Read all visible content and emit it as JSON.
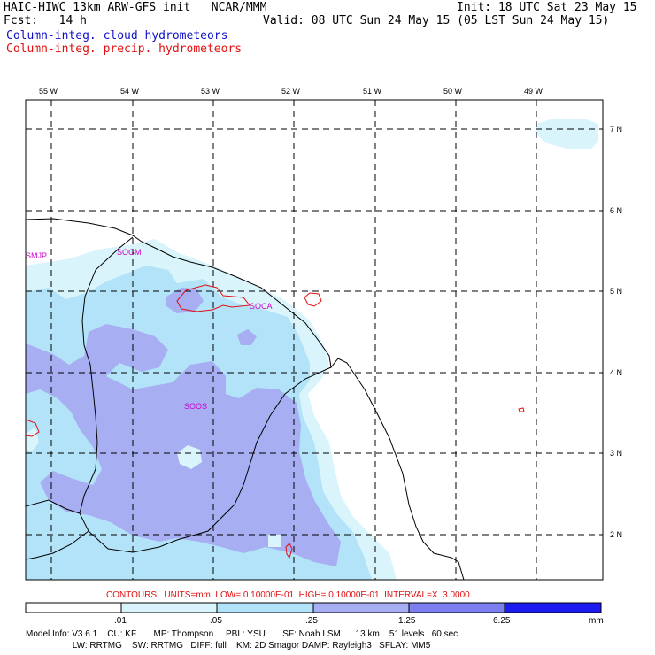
{
  "header": {
    "model_line": "HAIC-HIWC 13km ARW-GFS init   NCAR/MMM",
    "fcst_line": "Fcst:   14 h",
    "init_line": "Init: 18 UTC Sat 23 May 15",
    "valid_line": "Valid: 08 UTC Sun 24 May 15 (05 LST Sun 24 May 15)",
    "field_blue": "Column-integ. cloud hydrometeors",
    "field_red": "Column-integ. precip. hydrometeors"
  },
  "colors": {
    "blue_text": "#1010cc",
    "red_text": "#e01010",
    "magenta_labels": "#cc00cc",
    "level_1": "#ffffff",
    "level_2": "#d9f4fb",
    "level_3": "#b3e3f8",
    "level_4": "#a7aef2",
    "level_5": "#7d7ff0",
    "level_6": "#4c4ff2",
    "level_7": "#1c1cf0"
  },
  "map": {
    "lon_labels": [
      "55 W",
      "54 W",
      "53 W",
      "52 W",
      "51 W",
      "50 W",
      "49 W"
    ],
    "lat_labels": [
      "7 N",
      "6 N",
      "5 N",
      "4 N",
      "3 N",
      "2 N"
    ],
    "station_labels": [
      "SMJP",
      "SOGM",
      "SOCA",
      "SOOS"
    ]
  },
  "contours_line": "CONTOURS:  UNITS=mm  LOW= 0.10000E-01  HIGH= 0.10000E-01  INTERVAL=X  3.0000",
  "colorbar": {
    "ticks": [
      ".01",
      ".05",
      ".25",
      "1.25",
      "6.25"
    ],
    "unit": "mm"
  },
  "model_info": {
    "line1": "Model Info: V3.6.1    CU: KF       MP: Thompson     PBL: YSU       SF: Noah LSM      13 km    51 levels   60 sec",
    "line2": "                   LW: RRTMG    SW: RRTMG   DIFF: full    KM: 2D Smagor DAMP: Rayleigh3   SFLAY: MM5"
  }
}
